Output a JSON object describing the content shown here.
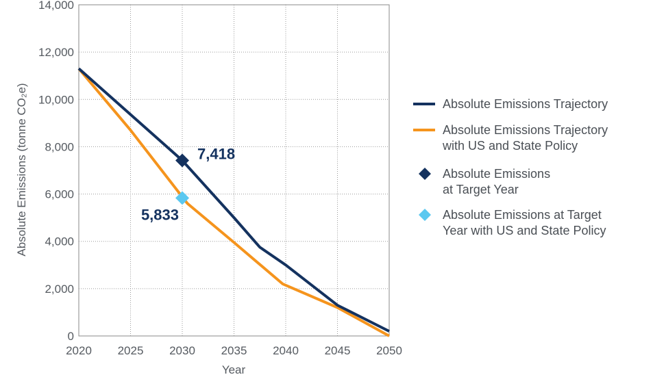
{
  "chart_data": {
    "type": "line",
    "xlabel": "Year",
    "ylabel": "Absolute Emissions (tonne CO₂e)",
    "xlim": [
      2020,
      2050
    ],
    "ylim": [
      0,
      14000
    ],
    "x_ticks": [
      "2020",
      "2025",
      "2030",
      "2035",
      "2040",
      "2045",
      "2050"
    ],
    "y_ticks": [
      "0",
      "2,000",
      "4,000",
      "6,000",
      "8,000",
      "10,000",
      "12,000",
      "14,000"
    ],
    "grid": true,
    "legend_position": "right",
    "series": [
      {
        "name": "Absolute Emissions Trajectory",
        "kind": "line",
        "color": "#14325f",
        "points": [
          [
            2020,
            11300
          ],
          [
            2030,
            7418
          ],
          [
            2035,
            5000
          ],
          [
            2037.5,
            3750
          ],
          [
            2040,
            3000
          ],
          [
            2045,
            1300
          ],
          [
            2050,
            200
          ]
        ]
      },
      {
        "name": "Absolute Emissions Trajectory with US and State Policy",
        "kind": "line",
        "color": "#f5941d",
        "points": [
          [
            2020,
            11300
          ],
          [
            2025,
            8700
          ],
          [
            2030.5,
            5600
          ],
          [
            2035,
            3950
          ],
          [
            2039.7,
            2200
          ],
          [
            2045,
            1200
          ],
          [
            2050,
            0
          ]
        ]
      },
      {
        "name": "Absolute Emissions at Target Year",
        "kind": "marker",
        "color": "#14325f",
        "points": [
          [
            2030,
            7418
          ]
        ],
        "label": "7,418"
      },
      {
        "name": "Absolute Emissions at Target Year with US and State Policy",
        "kind": "marker",
        "color": "#5bc8f0",
        "points": [
          [
            2030,
            5833
          ]
        ],
        "label": "5,833"
      }
    ],
    "legend": [
      {
        "lines": [
          "Absolute Emissions Trajectory"
        ]
      },
      {
        "lines": [
          "Absolute Emissions Trajectory",
          "with US and State Policy"
        ]
      },
      {
        "lines": [
          "Absolute Emissions",
          "at Target Year"
        ]
      },
      {
        "lines": [
          "Absolute Emissions at Target",
          "Year with US and State Policy"
        ]
      }
    ]
  }
}
